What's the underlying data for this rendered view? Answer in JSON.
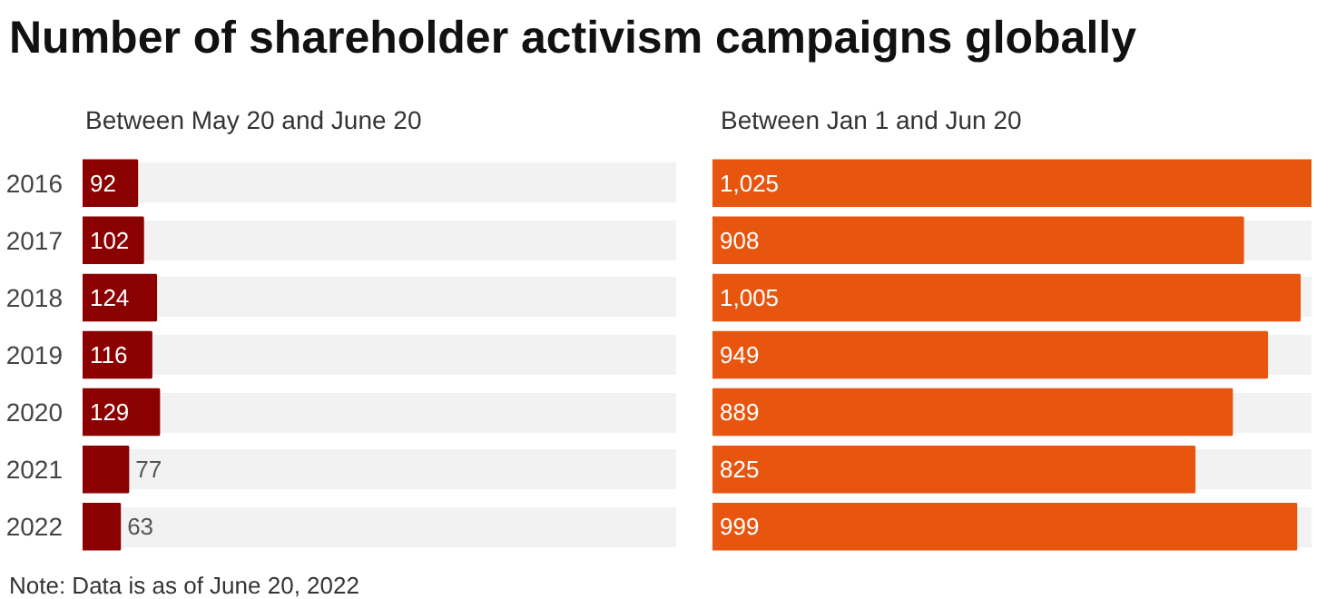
{
  "chart_data": [
    {
      "type": "bar",
      "orientation": "horizontal",
      "title": "Number of shareholder activism campaigns globally",
      "subtitle": "Between May 20 and June 20",
      "categories": [
        "2016",
        "2017",
        "2018",
        "2019",
        "2020",
        "2021",
        "2022"
      ],
      "values": [
        92,
        102,
        124,
        116,
        129,
        77,
        63
      ],
      "value_labels": [
        "92",
        "102",
        "124",
        "116",
        "129",
        "77",
        "63"
      ],
      "color": "#8b0000",
      "xlim": [
        0,
        1000
      ],
      "grid": "y",
      "tick_labels": "y",
      "annotations": [
        "Note: Data is as of June 20, 2022"
      ]
    },
    {
      "type": "bar",
      "orientation": "horizontal",
      "subtitle": "Between Jan 1 and Jun 20",
      "categories": [
        "2016",
        "2017",
        "2018",
        "2019",
        "2020",
        "2021",
        "2022"
      ],
      "values": [
        1025,
        908,
        1005,
        949,
        889,
        825,
        999
      ],
      "value_labels": [
        "1,025",
        "908",
        "1,005",
        "949",
        "889",
        "825",
        "999"
      ],
      "color": "#e8550f",
      "xlim": [
        0,
        1025
      ],
      "grid": "y",
      "tick_labels": false
    }
  ]
}
